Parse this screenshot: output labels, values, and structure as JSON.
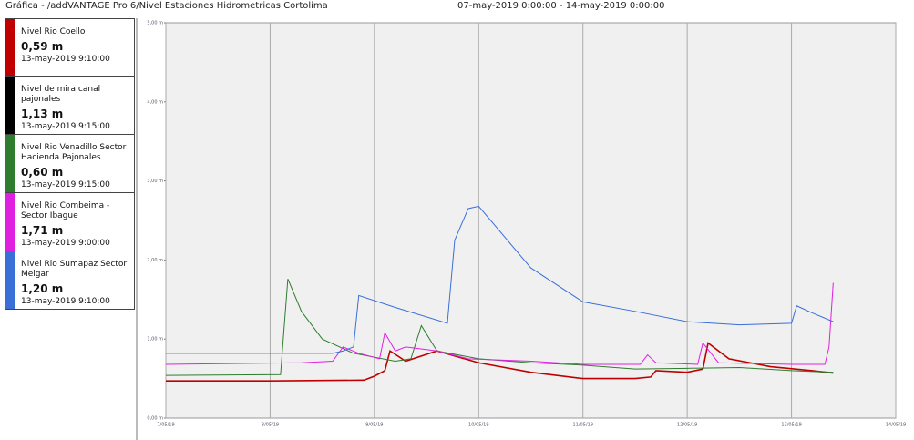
{
  "header": {
    "title": "Gráfica - /addVANTAGE Pro 6/Nivel Estaciones Hidrometricas Cortolima",
    "range": "07-may-2019 0:00:00 - 14-may-2019 0:00:00"
  },
  "chart_data": {
    "type": "line",
    "xlim": [
      0,
      7
    ],
    "xticks": [
      {
        "value": 0,
        "label": "7/05/19"
      },
      {
        "value": 1,
        "label": "8/05/19"
      },
      {
        "value": 2,
        "label": "9/05/19"
      },
      {
        "value": 3,
        "label": "10/05/19"
      },
      {
        "value": 4,
        "label": "11/05/19"
      },
      {
        "value": 5,
        "label": "12/05/19"
      },
      {
        "value": 6,
        "label": "13/05/19"
      },
      {
        "value": 7,
        "label": "14/05/19"
      }
    ],
    "ylim": [
      0,
      5
    ],
    "yticks": [
      {
        "value": 0,
        "label": "0,00 m"
      },
      {
        "value": 1,
        "label": "1,00 m"
      },
      {
        "value": 2,
        "label": "2,00 m"
      },
      {
        "value": 3,
        "label": "3,00 m"
      },
      {
        "value": 4,
        "label": "4,00 m"
      },
      {
        "value": 5,
        "label": "5,00 m"
      }
    ],
    "grid": true,
    "series": [
      {
        "name": "Nivel Rio Coello",
        "value_label": "0,59 m",
        "time": "13-may-2019 9:10:00",
        "color": "#c00000",
        "x": [
          0,
          1,
          1.9,
          2.0,
          2.1,
          2.15,
          2.3,
          2.6,
          3.0,
          3.5,
          4.0,
          4.5,
          4.65,
          4.7,
          5.0,
          5.15,
          5.2,
          5.4,
          5.8,
          6.2,
          6.4
        ],
        "values": [
          0.47,
          0.47,
          0.48,
          0.53,
          0.6,
          0.85,
          0.72,
          0.85,
          0.7,
          0.58,
          0.5,
          0.5,
          0.52,
          0.6,
          0.58,
          0.62,
          0.95,
          0.75,
          0.65,
          0.6,
          0.57
        ]
      },
      {
        "name": "Nivel de mira canal pajonales",
        "value_label": "1,13 m",
        "time": "13-may-2019 9:15:00",
        "color": "#000000",
        "x": [
          0,
          6.4
        ],
        "values": [
          null,
          null
        ]
      },
      {
        "name": "Nivel Rio Venadillo Sector Hacienda Pajonales",
        "value_label": "0,60 m",
        "time": "13-may-2019 9:15:00",
        "color": "#2e7d2e",
        "x": [
          0,
          1.1,
          1.17,
          1.3,
          1.5,
          1.8,
          2.2,
          2.35,
          2.45,
          2.6,
          3.0,
          3.5,
          4.0,
          4.5,
          5.0,
          5.5,
          6.0,
          6.4
        ],
        "values": [
          0.54,
          0.55,
          1.76,
          1.35,
          1.0,
          0.82,
          0.72,
          0.75,
          1.17,
          0.85,
          0.75,
          0.7,
          0.67,
          0.62,
          0.63,
          0.64,
          0.6,
          0.58
        ]
      },
      {
        "name": "Nivel Rio Combeima - Sector Ibague",
        "value_label": "1,71 m",
        "time": "13-may-2019 9:00:00",
        "color": "#e020e0",
        "x": [
          0,
          1.3,
          1.6,
          1.7,
          1.85,
          2.05,
          2.1,
          2.2,
          2.3,
          2.6,
          2.9,
          3.5,
          4.0,
          4.55,
          4.62,
          4.7,
          5.1,
          5.15,
          5.3,
          6.0,
          6.32,
          6.36,
          6.4
        ],
        "values": [
          0.68,
          0.7,
          0.72,
          0.9,
          0.82,
          0.75,
          1.08,
          0.85,
          0.9,
          0.85,
          0.75,
          0.72,
          0.68,
          0.68,
          0.8,
          0.7,
          0.68,
          0.95,
          0.7,
          0.68,
          0.68,
          0.9,
          1.71
        ]
      },
      {
        "name": "Nivel Rio Sumapaz Sector Melgar",
        "value_label": "1,20 m",
        "time": "13-may-2019 9:10:00",
        "color": "#3a6fd8",
        "x": [
          0,
          1.6,
          1.7,
          1.8,
          1.85,
          2.2,
          2.7,
          2.77,
          2.9,
          3.0,
          3.5,
          4.0,
          4.5,
          5.0,
          5.5,
          6.0,
          6.05,
          6.2,
          6.4
        ],
        "values": [
          0.82,
          0.82,
          0.85,
          0.9,
          1.55,
          1.4,
          1.2,
          2.25,
          2.65,
          2.68,
          1.9,
          1.47,
          1.35,
          1.22,
          1.18,
          1.2,
          1.42,
          1.33,
          1.22
        ]
      }
    ]
  }
}
